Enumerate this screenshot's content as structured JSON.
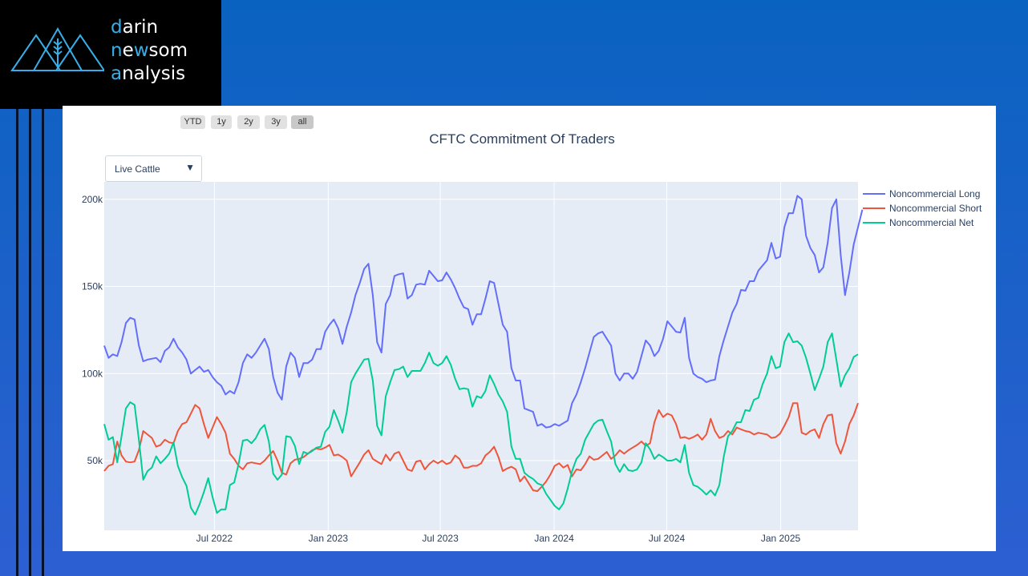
{
  "brand": {
    "line1_accent": "d",
    "line1_rest": "arin",
    "line2_accent": "n",
    "line2_mid": "e",
    "line2_accent2": "w",
    "line2_rest": "som",
    "line3_accent": "a",
    "line3_rest": "nalysis",
    "accent_color": "#38aee8"
  },
  "range_selector": [
    {
      "label": "YTD"
    },
    {
      "label": "1y"
    },
    {
      "label": "2y"
    },
    {
      "label": "3y"
    },
    {
      "label": "all",
      "active": true
    }
  ],
  "dropdown": {
    "selected": "Live Cattle"
  },
  "chart_data": {
    "type": "line",
    "title": "CFTC Commitment Of Traders",
    "x_start": "2022-01-04",
    "x_interval_days": 7,
    "x_range": [
      "2022-01-04",
      "2025-05-06"
    ],
    "x_ticks": [
      {
        "date": "2022-07-01",
        "label": "Jul 2022"
      },
      {
        "date": "2023-01-01",
        "label": "Jan 2023"
      },
      {
        "date": "2023-07-01",
        "label": "Jul 2023"
      },
      {
        "date": "2024-01-01",
        "label": "Jan 2024"
      },
      {
        "date": "2024-07-01",
        "label": "Jul 2024"
      },
      {
        "date": "2025-01-01",
        "label": "Jan 2025"
      }
    ],
    "ylim": [
      10000,
      210000
    ],
    "y_ticks": [
      {
        "value": 50000,
        "label": "50k"
      },
      {
        "value": 100000,
        "label": "100k"
      },
      {
        "value": 150000,
        "label": "150k"
      },
      {
        "value": 200000,
        "label": "200k"
      }
    ],
    "grid": true,
    "legend_placement": "top-right",
    "series": [
      {
        "name": "Noncommercial Long",
        "color": "#636efa",
        "values": [
          116000,
          109000,
          111000,
          110000,
          118000,
          129000,
          132000,
          131000,
          116000,
          107000,
          108000,
          108500,
          109000,
          106500,
          113000,
          115000,
          120000,
          115000,
          112000,
          108000,
          100000,
          102000,
          104000,
          101000,
          102000,
          98000,
          95000,
          93000,
          88000,
          90000,
          88500,
          95000,
          106000,
          111000,
          109000,
          112000,
          116000,
          120000,
          114000,
          98000,
          89000,
          85000,
          104000,
          112000,
          109000,
          98000,
          106000,
          106000,
          108000,
          114000,
          114000,
          124000,
          128000,
          131000,
          126000,
          117000,
          127000,
          135000,
          145000,
          152000,
          160000,
          163000,
          145000,
          118000,
          112000,
          140000,
          145000,
          156000,
          157000,
          157500,
          143000,
          145000,
          151000,
          151500,
          151000,
          159000,
          156000,
          153000,
          153500,
          158000,
          154000,
          149000,
          143000,
          138000,
          137000,
          128000,
          134000,
          134000,
          143000,
          153000,
          152000,
          140000,
          128000,
          124000,
          103000,
          96000,
          96000,
          80000,
          79000,
          78000,
          70000,
          71000,
          69000,
          69500,
          71000,
          70000,
          71500,
          73000,
          83000,
          88000,
          95000,
          103000,
          112000,
          121000,
          123000,
          124000,
          120000,
          116000,
          100000,
          96000,
          100000,
          100000,
          97000,
          101000,
          110000,
          119000,
          116000,
          110000,
          113000,
          120000,
          130000,
          127000,
          124000,
          123500,
          132000,
          109000,
          100000,
          98000,
          97000,
          95000,
          96000,
          96500,
          110000,
          119000,
          127000,
          135000,
          140000,
          148000,
          147500,
          153000,
          153000,
          159000,
          162000,
          165000,
          175000,
          166000,
          167000,
          184000,
          192000,
          192000,
          202000,
          200000,
          179000,
          172000,
          168000,
          158000,
          161000,
          175000,
          195000,
          200000,
          168000,
          145000,
          158000,
          174000,
          184000,
          194000
        ]
      },
      {
        "name": "Noncommercial Short",
        "color": "#ef553b",
        "values": [
          44000,
          47000,
          48000,
          61000,
          53000,
          49500,
          49000,
          49500,
          56000,
          67000,
          65000,
          63000,
          58000,
          59000,
          62000,
          60500,
          60000,
          67000,
          71000,
          72000,
          77000,
          82000,
          80000,
          71000,
          63000,
          69000,
          75000,
          71000,
          66000,
          54000,
          51000,
          47000,
          45000,
          48500,
          49000,
          48500,
          48000,
          50000,
          53000,
          55500,
          50000,
          43000,
          42000,
          48500,
          50500,
          51000,
          52000,
          54000,
          56000,
          57000,
          56500,
          57500,
          59000,
          53000,
          53500,
          52000,
          50000,
          41000,
          45000,
          49000,
          53500,
          56000,
          51000,
          49500,
          48000,
          53500,
          50000,
          54000,
          55000,
          50000,
          45000,
          44000,
          49500,
          50000,
          45000,
          48000,
          50000,
          48500,
          50000,
          48000,
          49000,
          53000,
          51000,
          46000,
          46000,
          47000,
          47000,
          48500,
          53000,
          55000,
          58000,
          52000,
          44000,
          45500,
          46500,
          45000,
          38000,
          41000,
          37000,
          33000,
          32500,
          35000,
          38000,
          42000,
          47000,
          48500,
          46000,
          47500,
          41000,
          45000,
          44500,
          48000,
          52500,
          50500,
          51000,
          53000,
          55000,
          51000,
          53000,
          56000,
          54000,
          56000,
          57500,
          59000,
          61000,
          58500,
          60000,
          72000,
          79000,
          75000,
          77000,
          76000,
          71000,
          63000,
          63500,
          62500,
          63500,
          65000,
          62000,
          65000,
          74000,
          67000,
          63000,
          64000,
          67000,
          65000,
          69000,
          68000,
          67000,
          66500,
          65000,
          66000,
          65500,
          65000,
          63000,
          63500,
          65500,
          70000,
          75000,
          83000,
          83000,
          66000,
          65000,
          67000,
          68000,
          63000,
          71000,
          76000,
          76500,
          60000,
          54000,
          61000,
          71000,
          76000,
          83000
        ]
      },
      {
        "name": "Noncommercial Net",
        "color": "#00cc96",
        "values": [
          71000,
          62000,
          63500,
          49000,
          64000,
          80000,
          83500,
          82000,
          62000,
          39000,
          44000,
          46000,
          52500,
          48500,
          51000,
          54000,
          60500,
          47000,
          40500,
          35500,
          23000,
          19000,
          25000,
          32000,
          40000,
          29000,
          20000,
          22000,
          22000,
          36000,
          37500,
          48000,
          61500,
          62000,
          60000,
          63000,
          68000,
          70500,
          61000,
          42500,
          39000,
          42000,
          64000,
          63500,
          58500,
          48000,
          55000,
          54000,
          55500,
          57500,
          58000,
          66500,
          69500,
          79000,
          73000,
          66000,
          78000,
          95000,
          100000,
          104000,
          108000,
          108500,
          96000,
          70000,
          64500,
          87000,
          95000,
          102000,
          102500,
          104000,
          98000,
          101500,
          101500,
          101500,
          106000,
          112000,
          106000,
          104500,
          106000,
          110000,
          105000,
          97000,
          91000,
          91500,
          91000,
          81000,
          87000,
          86000,
          90000,
          99000,
          94000,
          88000,
          84000,
          78000,
          58000,
          51000,
          51000,
          43000,
          41000,
          39500,
          37000,
          36000,
          31000,
          27500,
          24000,
          22000,
          25500,
          34000,
          44000,
          51000,
          54000,
          62000,
          66500,
          71000,
          73000,
          73500,
          67000,
          61000,
          48000,
          43500,
          48000,
          44500,
          44000,
          45000,
          49000,
          60000,
          56500,
          51000,
          53500,
          52000,
          50000,
          50000,
          51000,
          49000,
          59000,
          43000,
          36000,
          35000,
          33000,
          30500,
          33000,
          30000,
          36000,
          52000,
          64000,
          67000,
          72000,
          72000,
          79000,
          78500,
          85000,
          86000,
          94000,
          100000,
          110000,
          103000,
          104000,
          118000,
          123000,
          118000,
          118500,
          116000,
          109000,
          100000,
          90500,
          97000,
          104000,
          118000,
          123000,
          108000,
          92500,
          99000,
          103000,
          109500,
          111000
        ]
      }
    ]
  }
}
